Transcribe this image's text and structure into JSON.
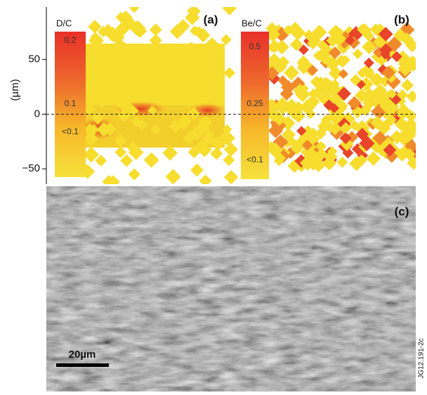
{
  "y_axis": {
    "label": "(µm)",
    "ylim": [
      -64,
      98
    ],
    "ticks": [
      50,
      0,
      {
        "value": -50,
        "label": "−50"
      }
    ]
  },
  "panels": {
    "a": {
      "label": "(a)",
      "colorbar": {
        "title": "D/C",
        "labels": [
          "0.2",
          "0.1",
          "<0.1"
        ]
      }
    },
    "b": {
      "label": "(b)",
      "colorbar": {
        "title": "Be/C",
        "labels": [
          "0.5",
          "0.25",
          "<0.1"
        ]
      }
    },
    "c": {
      "label": "(c)",
      "scale_bar": "20µm"
    }
  },
  "figure_id": "JG12.191-2c"
}
